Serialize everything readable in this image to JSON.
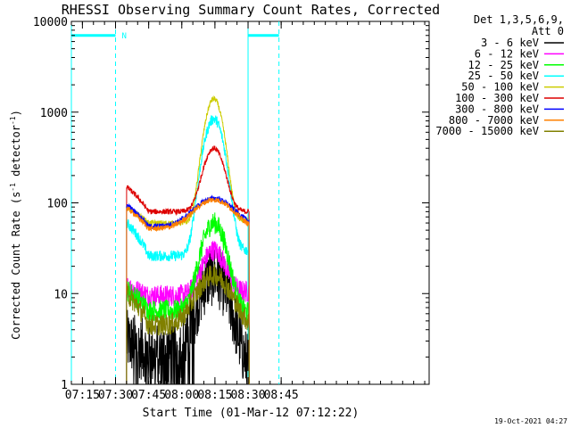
{
  "chart_data": {
    "type": "line",
    "title": "RHESSI Observing Summary Count Rates, Corrected",
    "xlabel": "Start Time (01-Mar-12 07:12:22)",
    "ylabel_main": "Corrected Count Rate (s",
    "ylabel_sup1": "-1",
    "ylabel_mid": " detector",
    "ylabel_sup2": "-1",
    "ylabel_end": ")",
    "yscale": "log",
    "ylim": [
      1,
      10000
    ],
    "xlim_min": [
      430,
      592
    ],
    "y_ticks": [
      {
        "value": 1,
        "label": "1"
      },
      {
        "value": 10,
        "label": "10"
      },
      {
        "value": 100,
        "label": "100"
      },
      {
        "value": 1000,
        "label": "1000"
      },
      {
        "value": 10000,
        "label": "10000"
      }
    ],
    "x_ticks": [
      {
        "value": 435,
        "label": "07:15"
      },
      {
        "value": 450,
        "label": "07:30"
      },
      {
        "value": 465,
        "label": "07:45"
      },
      {
        "value": 480,
        "label": "08:00"
      },
      {
        "value": 495,
        "label": "08:15"
      },
      {
        "value": 510,
        "label": "08:30"
      },
      {
        "value": 525,
        "label": "08:45"
      }
    ],
    "legend": {
      "position": "top-right",
      "header": [
        "Det 1,3,5,6,9,",
        "Att 0"
      ],
      "entries": [
        {
          "label": "3 - 6 keV",
          "color": "#000000"
        },
        {
          "label": "6 - 12 keV",
          "color": "#ff00ff"
        },
        {
          "label": "12 - 25 keV",
          "color": "#00ff00"
        },
        {
          "label": "25 - 50 keV",
          "color": "#00ffff"
        },
        {
          "label": "50 - 100 keV",
          "color": "#cccc00"
        },
        {
          "label": "100 - 300 keV",
          "color": "#dd0000"
        },
        {
          "label": "300 - 800 keV",
          "color": "#0000ff"
        },
        {
          "label": "800 - 7000 keV",
          "color": "#ff8000"
        },
        {
          "label": "7000 - 15000 keV",
          "color": "#808000"
        }
      ]
    },
    "data_interval": [
      455,
      510.5
    ],
    "series": [
      {
        "name": "3 - 6 keV",
        "color": "#000000",
        "base": 2.2,
        "peak": 16,
        "peak_time": 494.5,
        "width": 5.5,
        "noise": 0.35,
        "end_level": 1.3,
        "start_level": 3
      },
      {
        "name": "6 - 12 keV",
        "color": "#ff00ff",
        "base": 9.5,
        "peak": 30,
        "peak_time": 494.5,
        "width": 4.5,
        "noise": 0.12,
        "end_level": 10.5,
        "start_level": 12
      },
      {
        "name": "12 - 25 keV",
        "color": "#00ff00",
        "base": 6.5,
        "peak": 60,
        "peak_time": 494.5,
        "width": 4.5,
        "noise": 0.12,
        "end_level": 6,
        "start_level": 11
      },
      {
        "name": "25 - 50 keV",
        "color": "#00ffff",
        "base": 26,
        "peak": 840,
        "peak_time": 494.5,
        "width": 3.8,
        "noise": 0.06,
        "end_level": 30,
        "start_level": 60
      },
      {
        "name": "50 - 100 keV",
        "color": "#cccc00",
        "base": 60,
        "peak": 1400,
        "peak_time": 494.5,
        "width": 3.4,
        "noise": 0.03,
        "end_level": 64,
        "start_level": 90
      },
      {
        "name": "100 - 300 keV",
        "color": "#dd0000",
        "base": 80,
        "peak": 400,
        "peak_time": 494.5,
        "width": 4.0,
        "noise": 0.03,
        "end_level": 80,
        "start_level": 150
      },
      {
        "name": "300 - 800 keV",
        "color": "#0000ff",
        "base": 55,
        "peak": 112,
        "peak_time": 494.5,
        "width": 8.0,
        "noise": 0.03,
        "end_level": 55,
        "start_level": 95
      },
      {
        "name": "800 - 7000 keV",
        "color": "#ff8000",
        "base": 52,
        "peak": 108,
        "peak_time": 494.5,
        "width": 8.0,
        "noise": 0.03,
        "end_level": 50,
        "start_level": 88
      },
      {
        "name": "7000 - 15000 keV",
        "color": "#808000",
        "base": 4.5,
        "peak": 16,
        "peak_time": 494.5,
        "width": 6.5,
        "noise": 0.12,
        "end_level": 4.2,
        "start_level": 10
      }
    ],
    "annotations": {
      "saa_label": "N",
      "saa_level": 7000,
      "saa_ranges": [
        [
          430,
          450
        ],
        [
          510,
          524
        ]
      ],
      "dashed_times": [
        450,
        524
      ],
      "solid_times": [
        430,
        510
      ]
    },
    "timestamp": "19-Oct-2021 04:27"
  }
}
